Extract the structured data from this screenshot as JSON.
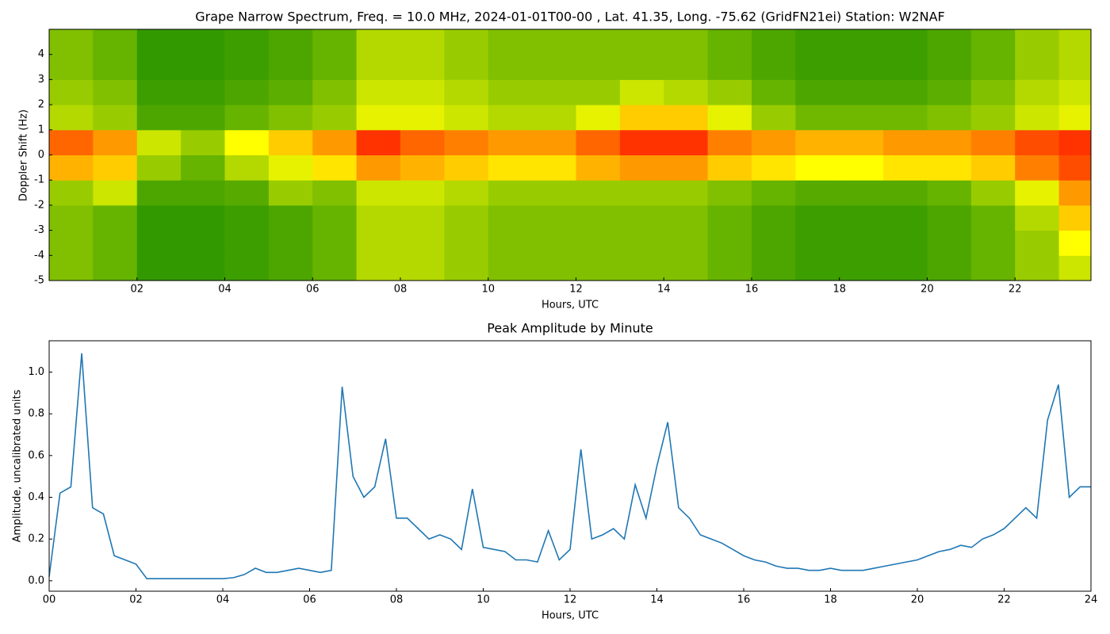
{
  "chart_data": [
    {
      "type": "heatmap",
      "title": "Grape Narrow Spectrum, Freq. = 10.0 MHz, 2024-01-01T00-00 , Lat.  41.35, Long. -75.62 (GridFN21ei) Station: W2NAF",
      "xlabel": "Hours, UTC",
      "ylabel": "Doppler Shift (Hz)",
      "xlim": [
        0,
        23.73
      ],
      "ylim": [
        -5,
        5
      ],
      "xticks": [
        {
          "value": 2,
          "label": "02"
        },
        {
          "value": 4,
          "label": "04"
        },
        {
          "value": 6,
          "label": "06"
        },
        {
          "value": 8,
          "label": "08"
        },
        {
          "value": 10,
          "label": "10"
        },
        {
          "value": 12,
          "label": "12"
        },
        {
          "value": 14,
          "label": "14"
        },
        {
          "value": 16,
          "label": "16"
        },
        {
          "value": 18,
          "label": "18"
        },
        {
          "value": 20,
          "label": "20"
        },
        {
          "value": 22,
          "label": "22"
        }
      ],
      "yticks": [
        -5,
        -4,
        -3,
        -2,
        -1,
        0,
        1,
        2,
        3,
        4
      ],
      "colormap": [
        "#008000",
        "#ffff00",
        "#ff0000"
      ],
      "xbins": [
        0,
        1,
        2,
        3,
        4,
        5,
        6,
        7,
        8,
        9,
        10,
        11,
        12,
        13,
        14,
        15,
        16,
        17,
        18,
        19,
        20,
        21,
        22,
        23,
        24
      ],
      "ybins": [
        -5,
        -4,
        -3,
        -2,
        -1,
        0,
        1,
        2,
        3,
        4,
        5
      ],
      "values": [
        [
          0.25,
          0.2,
          0.1,
          0.1,
          0.12,
          0.15,
          0.2,
          0.35,
          0.35,
          0.3,
          0.25,
          0.25,
          0.25,
          0.25,
          0.25,
          0.2,
          0.15,
          0.12,
          0.12,
          0.12,
          0.15,
          0.2,
          0.3,
          0.4
        ],
        [
          0.25,
          0.2,
          0.1,
          0.1,
          0.12,
          0.15,
          0.2,
          0.35,
          0.35,
          0.3,
          0.25,
          0.25,
          0.25,
          0.25,
          0.25,
          0.2,
          0.15,
          0.12,
          0.12,
          0.12,
          0.15,
          0.2,
          0.3,
          0.5
        ],
        [
          0.25,
          0.2,
          0.1,
          0.1,
          0.12,
          0.15,
          0.2,
          0.35,
          0.35,
          0.3,
          0.25,
          0.25,
          0.25,
          0.25,
          0.25,
          0.2,
          0.15,
          0.12,
          0.12,
          0.12,
          0.15,
          0.2,
          0.35,
          0.6
        ],
        [
          0.3,
          0.4,
          0.15,
          0.15,
          0.17,
          0.3,
          0.25,
          0.4,
          0.4,
          0.35,
          0.3,
          0.3,
          0.3,
          0.3,
          0.3,
          0.25,
          0.2,
          0.17,
          0.17,
          0.17,
          0.2,
          0.3,
          0.45,
          0.7
        ],
        [
          0.65,
          0.6,
          0.3,
          0.2,
          0.35,
          0.45,
          0.55,
          0.7,
          0.65,
          0.6,
          0.55,
          0.55,
          0.65,
          0.7,
          0.7,
          0.6,
          0.55,
          0.5,
          0.5,
          0.55,
          0.55,
          0.6,
          0.75,
          0.85
        ],
        [
          0.8,
          0.7,
          0.4,
          0.3,
          0.5,
          0.6,
          0.7,
          0.9,
          0.8,
          0.75,
          0.7,
          0.7,
          0.8,
          0.9,
          0.9,
          0.75,
          0.7,
          0.65,
          0.65,
          0.7,
          0.7,
          0.75,
          0.85,
          0.9
        ],
        [
          0.35,
          0.3,
          0.15,
          0.15,
          0.2,
          0.25,
          0.3,
          0.45,
          0.45,
          0.4,
          0.35,
          0.35,
          0.45,
          0.6,
          0.6,
          0.45,
          0.3,
          0.22,
          0.22,
          0.22,
          0.25,
          0.3,
          0.4,
          0.45
        ],
        [
          0.3,
          0.25,
          0.12,
          0.12,
          0.15,
          0.18,
          0.25,
          0.4,
          0.4,
          0.35,
          0.3,
          0.3,
          0.3,
          0.4,
          0.35,
          0.3,
          0.2,
          0.15,
          0.15,
          0.15,
          0.18,
          0.25,
          0.35,
          0.4
        ],
        [
          0.25,
          0.2,
          0.1,
          0.1,
          0.12,
          0.15,
          0.2,
          0.35,
          0.35,
          0.3,
          0.25,
          0.25,
          0.25,
          0.25,
          0.25,
          0.2,
          0.15,
          0.12,
          0.12,
          0.12,
          0.15,
          0.2,
          0.3,
          0.35
        ],
        [
          0.25,
          0.2,
          0.1,
          0.1,
          0.12,
          0.15,
          0.2,
          0.35,
          0.35,
          0.3,
          0.25,
          0.25,
          0.25,
          0.25,
          0.25,
          0.2,
          0.15,
          0.12,
          0.12,
          0.12,
          0.15,
          0.2,
          0.3,
          0.35
        ]
      ]
    },
    {
      "type": "line",
      "title": "Peak Amplitude by Minute",
      "xlabel": "Hours, UTC",
      "ylabel": "Amplitude, uncalibrated units",
      "xlim": [
        0,
        24
      ],
      "ylim": [
        -0.05,
        1.15
      ],
      "xticks": [
        {
          "value": 0,
          "label": "00"
        },
        {
          "value": 2,
          "label": "02"
        },
        {
          "value": 4,
          "label": "04"
        },
        {
          "value": 6,
          "label": "06"
        },
        {
          "value": 8,
          "label": "08"
        },
        {
          "value": 10,
          "label": "10"
        },
        {
          "value": 12,
          "label": "12"
        },
        {
          "value": 14,
          "label": "14"
        },
        {
          "value": 16,
          "label": "16"
        },
        {
          "value": 18,
          "label": "18"
        },
        {
          "value": 20,
          "label": "20"
        },
        {
          "value": 22,
          "label": "22"
        },
        {
          "value": 24,
          "label": "24"
        }
      ],
      "yticks": [
        {
          "value": 0,
          "label": "0.0"
        },
        0.2,
        0.4,
        0.6,
        0.8,
        {
          "value": 1,
          "label": "1.0"
        }
      ],
      "color": "#1f77b4",
      "x": [
        0,
        0.25,
        0.5,
        0.75,
        1,
        1.25,
        1.5,
        1.75,
        2,
        2.25,
        2.5,
        2.75,
        3,
        3.25,
        3.5,
        3.75,
        4,
        4.25,
        4.5,
        4.75,
        5,
        5.25,
        5.5,
        5.75,
        6,
        6.25,
        6.5,
        6.75,
        7,
        7.25,
        7.5,
        7.75,
        8,
        8.25,
        8.5,
        8.75,
        9,
        9.25,
        9.5,
        9.75,
        10,
        10.25,
        10.5,
        10.75,
        11,
        11.25,
        11.5,
        11.75,
        12,
        12.25,
        12.5,
        12.75,
        13,
        13.25,
        13.5,
        13.75,
        14,
        14.25,
        14.5,
        14.75,
        15,
        15.25,
        15.5,
        15.75,
        16,
        16.25,
        16.5,
        16.75,
        17,
        17.25,
        17.5,
        17.75,
        18,
        18.25,
        18.5,
        18.75,
        19,
        19.25,
        19.5,
        19.75,
        20,
        20.25,
        20.5,
        20.75,
        21,
        21.25,
        21.5,
        21.75,
        22,
        22.25,
        22.5,
        22.75,
        23,
        23.25,
        23.5,
        23.75,
        24
      ],
      "values": [
        0.02,
        0.42,
        0.45,
        1.09,
        0.35,
        0.32,
        0.12,
        0.1,
        0.08,
        0.01,
        0.01,
        0.01,
        0.01,
        0.01,
        0.01,
        0.01,
        0.01,
        0.015,
        0.03,
        0.06,
        0.04,
        0.04,
        0.05,
        0.06,
        0.05,
        0.04,
        0.05,
        0.93,
        0.5,
        0.4,
        0.45,
        0.68,
        0.3,
        0.3,
        0.25,
        0.2,
        0.22,
        0.2,
        0.15,
        0.44,
        0.16,
        0.15,
        0.14,
        0.1,
        0.1,
        0.09,
        0.24,
        0.1,
        0.15,
        0.63,
        0.2,
        0.22,
        0.25,
        0.2,
        0.46,
        0.3,
        0.55,
        0.76,
        0.35,
        0.3,
        0.22,
        0.2,
        0.18,
        0.15,
        0.12,
        0.1,
        0.09,
        0.07,
        0.06,
        0.06,
        0.05,
        0.05,
        0.06,
        0.05,
        0.05,
        0.05,
        0.06,
        0.07,
        0.08,
        0.09,
        0.1,
        0.12,
        0.14,
        0.15,
        0.17,
        0.16,
        0.2,
        0.22,
        0.25,
        0.3,
        0.35,
        0.3,
        0.77,
        0.94,
        0.4,
        0.45,
        0.45
      ]
    }
  ]
}
